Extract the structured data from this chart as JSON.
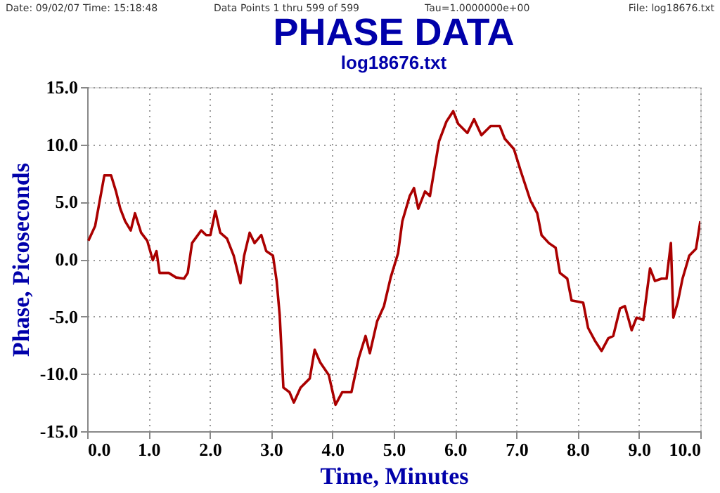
{
  "chart_data": {
    "type": "line",
    "title": "PHASE DATA",
    "subtitle": "log18676.txt",
    "xlabel": "Time, Minutes",
    "ylabel": "Phase, Picoseconds",
    "annotations": [
      "Date: 09/02/07  Time: 15:18:48",
      "Data Points 1 thru 599 of 599",
      "Tau=1.0000000e+00",
      "File: log18676.txt"
    ],
    "x": [
      0.02,
      0.13,
      0.28,
      0.39,
      0.47,
      0.54,
      0.62,
      0.71,
      0.78,
      0.88,
      0.98,
      1.07,
      1.13,
      1.18,
      1.33,
      1.45,
      1.58,
      1.64,
      1.71,
      1.86,
      1.94,
      2.01,
      2.09,
      2.17,
      2.28,
      2.39,
      2.5,
      2.56,
      2.65,
      2.73,
      2.84,
      2.92,
      3.03,
      3.09,
      3.14,
      3.2,
      3.3,
      3.37,
      3.48,
      3.63,
      3.71,
      3.8,
      3.94,
      4.05,
      4.16,
      4.31,
      4.43,
      4.54,
      4.61,
      4.73,
      4.84,
      4.95,
      5.07,
      5.14,
      5.26,
      5.33,
      5.4,
      5.51,
      5.59,
      5.74,
      5.86,
      5.97,
      6.05,
      6.2,
      6.31,
      6.43,
      6.58,
      6.73,
      6.81,
      6.96,
      7.07,
      7.23,
      7.34,
      7.41,
      7.53,
      7.64,
      7.71,
      7.83,
      7.9,
      8.09,
      8.17,
      8.28,
      8.39,
      8.5,
      8.58,
      8.69,
      8.77,
      8.88,
      8.96,
      9.07,
      9.18,
      9.26,
      9.37,
      9.45,
      9.52,
      9.56,
      9.63,
      9.71,
      9.82,
      9.93,
      10.0
    ],
    "series": [
      {
        "color": "#aa0000",
        "values": [
          1.6,
          2.9,
          7.3,
          7.3,
          5.9,
          4.4,
          3.3,
          2.5,
          4.0,
          2.3,
          1.6,
          -0.1,
          0.7,
          -1.2,
          -1.2,
          -1.6,
          -1.7,
          -1.2,
          1.4,
          2.5,
          2.1,
          2.1,
          4.2,
          2.3,
          1.8,
          0.3,
          -2.1,
          0.3,
          2.3,
          1.4,
          2.1,
          0.7,
          0.3,
          -1.9,
          -4.9,
          -11.2,
          -11.6,
          -12.5,
          -11.2,
          -10.4,
          -7.9,
          -9.0,
          -10.1,
          -12.7,
          -11.6,
          -11.6,
          -8.6,
          -6.7,
          -8.2,
          -5.4,
          -4.1,
          -1.6,
          0.5,
          3.3,
          5.5,
          6.2,
          4.4,
          5.9,
          5.5,
          10.3,
          12.0,
          12.9,
          11.8,
          11.0,
          12.2,
          10.8,
          11.6,
          11.6,
          10.5,
          9.6,
          7.7,
          5.1,
          4.0,
          2.1,
          1.4,
          1.0,
          -1.2,
          -1.7,
          -3.6,
          -3.8,
          -6.0,
          -7.1,
          -8.0,
          -6.9,
          -6.7,
          -4.3,
          -4.1,
          -6.2,
          -5.1,
          -5.3,
          -0.8,
          -1.9,
          -1.7,
          -1.7,
          1.4,
          -5.1,
          -3.8,
          -1.7,
          0.3,
          0.9,
          3.3
        ]
      }
    ],
    "xlim": [
      0,
      10
    ],
    "ylim": [
      -15,
      15
    ],
    "xticks": [
      {
        "value": 0,
        "label": "0.0"
      },
      {
        "value": 1,
        "label": "1.0"
      },
      {
        "value": 2,
        "label": "2.0"
      },
      {
        "value": 3,
        "label": "3.0"
      },
      {
        "value": 4,
        "label": "4.0"
      },
      {
        "value": 5,
        "label": "5.0"
      },
      {
        "value": 6,
        "label": "6.0"
      },
      {
        "value": 7,
        "label": "7.0"
      },
      {
        "value": 8,
        "label": "8.0"
      },
      {
        "value": 9,
        "label": "9.0"
      },
      {
        "value": 10,
        "label": "10.0"
      }
    ],
    "yticks": [
      {
        "value": -15,
        "label": "-15.0"
      },
      {
        "value": -10,
        "label": "-10.0"
      },
      {
        "value": -5,
        "label": "-5.0"
      },
      {
        "value": 0,
        "label": "0.0"
      },
      {
        "value": 5,
        "label": "5.0"
      },
      {
        "value": 10,
        "label": "10.0"
      },
      {
        "value": 15,
        "label": "15.0"
      }
    ],
    "grid": true,
    "line_style": "solid",
    "marker": "none"
  }
}
